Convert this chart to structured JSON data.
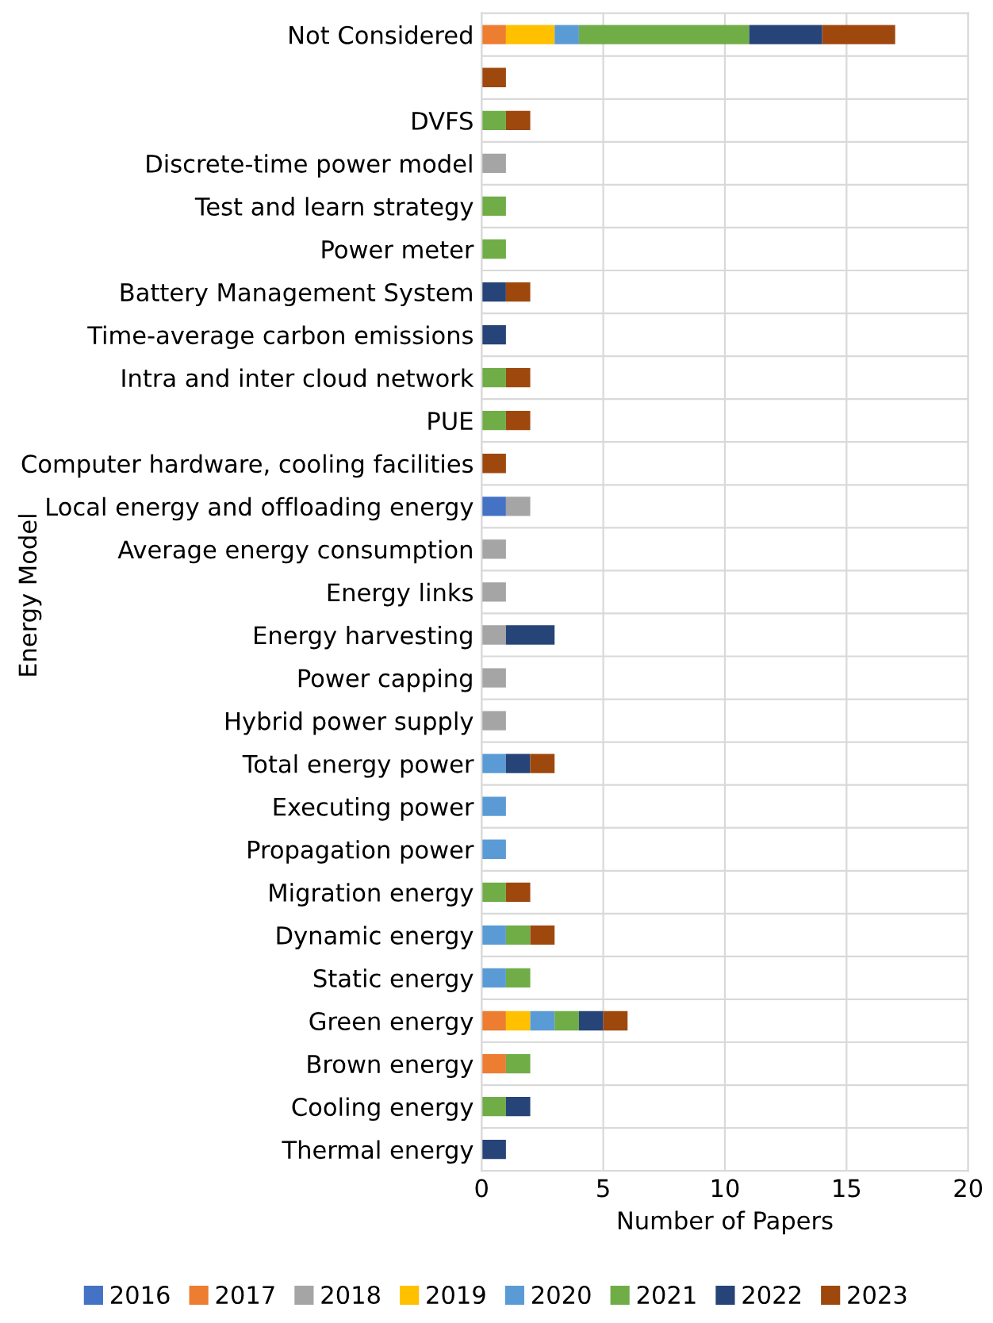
{
  "chart_data": {
    "type": "bar",
    "orientation": "horizontal",
    "stacked": true,
    "xlabel": "Number of Papers",
    "ylabel": "Energy Model",
    "categories": [
      "Not Considered",
      null,
      "DVFS",
      "Discrete-time power model",
      "Test and learn strategy",
      "Power meter",
      "Battery Management System",
      "Time-average carbon emissions",
      "Intra and inter cloud network",
      "PUE",
      "Computer hardware, cooling facilities",
      "Local energy and offloading energy",
      "Average energy consumption",
      "Energy links",
      "Energy harvesting",
      "Power capping",
      "Hybrid power supply",
      "Total energy power",
      "Executing power",
      "Propagation power",
      "Migration energy",
      "Dynamic energy",
      "Static energy",
      "Green energy",
      "Brown energy",
      "Cooling energy",
      "Thermal energy"
    ],
    "series": [
      {
        "name": "2016",
        "color": "#4472c4",
        "values": [
          null,
          null,
          null,
          null,
          null,
          null,
          null,
          null,
          null,
          null,
          null,
          1,
          null,
          null,
          null,
          null,
          null,
          null,
          null,
          null,
          null,
          null,
          null,
          null,
          null,
          null,
          null
        ]
      },
      {
        "name": "2017",
        "color": "#ed7d31",
        "values": [
          1,
          null,
          null,
          null,
          null,
          null,
          null,
          null,
          null,
          null,
          null,
          null,
          null,
          null,
          null,
          null,
          null,
          null,
          null,
          null,
          null,
          null,
          null,
          1,
          1,
          null,
          null
        ]
      },
      {
        "name": "2018",
        "color": "#a5a5a5",
        "values": [
          null,
          null,
          null,
          1,
          null,
          null,
          null,
          null,
          null,
          null,
          null,
          1,
          1,
          1,
          1,
          1,
          1,
          null,
          null,
          null,
          null,
          null,
          null,
          null,
          null,
          null,
          null
        ]
      },
      {
        "name": "2019",
        "color": "#ffc000",
        "values": [
          2,
          null,
          null,
          null,
          null,
          null,
          null,
          null,
          null,
          null,
          null,
          null,
          null,
          null,
          null,
          null,
          null,
          null,
          null,
          null,
          null,
          null,
          null,
          1,
          null,
          null,
          null
        ]
      },
      {
        "name": "2020",
        "color": "#5b9bd5",
        "values": [
          1,
          null,
          null,
          null,
          null,
          null,
          null,
          null,
          null,
          null,
          null,
          null,
          null,
          null,
          null,
          null,
          null,
          1,
          1,
          1,
          null,
          1,
          1,
          1,
          null,
          null,
          null
        ]
      },
      {
        "name": "2021",
        "color": "#70ad47",
        "values": [
          7,
          null,
          1,
          null,
          1,
          1,
          null,
          null,
          1,
          1,
          null,
          null,
          null,
          null,
          null,
          null,
          null,
          null,
          null,
          null,
          1,
          1,
          1,
          1,
          1,
          1,
          null
        ]
      },
      {
        "name": "2022",
        "color": "#264478",
        "values": [
          3,
          null,
          null,
          null,
          null,
          null,
          1,
          1,
          null,
          null,
          null,
          null,
          null,
          null,
          2,
          null,
          null,
          1,
          null,
          null,
          null,
          null,
          null,
          1,
          null,
          1,
          1
        ]
      },
      {
        "name": "2023",
        "color": "#9e480e",
        "values": [
          3,
          1,
          1,
          null,
          null,
          null,
          1,
          null,
          1,
          1,
          1,
          null,
          null,
          null,
          null,
          null,
          null,
          1,
          null,
          null,
          1,
          1,
          null,
          1,
          null,
          null,
          null
        ]
      }
    ],
    "xlim": [
      0,
      20
    ],
    "xticks": [
      0,
      5,
      10,
      15,
      20
    ],
    "grid": true,
    "legend": "bottom"
  }
}
